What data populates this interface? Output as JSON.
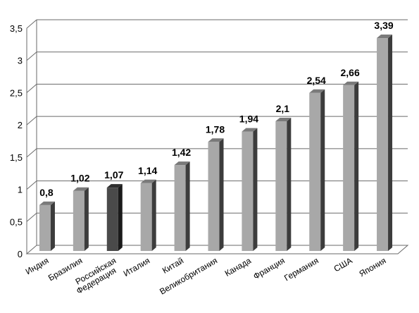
{
  "chart_data": {
    "type": "bar",
    "title": "",
    "xlabel": "",
    "ylabel": "",
    "ylim": [
      0,
      3.5
    ],
    "yticks": [
      "0",
      "0,5",
      "1",
      "1,5",
      "2",
      "2,5",
      "3",
      "3,5"
    ],
    "grid": true,
    "style": "3d-column",
    "categories": [
      "Индия",
      "Бразилия",
      "Российская Федерация",
      "Италия",
      "Китай",
      "Великобритания",
      "Канада",
      "Франция",
      "Германия",
      "США",
      "Япония"
    ],
    "category_lines": [
      [
        "Индия"
      ],
      [
        "Бразилия"
      ],
      [
        "Российская",
        "Федерация"
      ],
      [
        "Италия"
      ],
      [
        "Китай"
      ],
      [
        "Великобритания"
      ],
      [
        "Канада"
      ],
      [
        "Франция"
      ],
      [
        "Германия"
      ],
      [
        "США"
      ],
      [
        "Япония"
      ]
    ],
    "values": [
      0.8,
      1.02,
      1.07,
      1.14,
      1.42,
      1.78,
      1.94,
      2.1,
      2.54,
      2.66,
      3.39
    ],
    "data_labels": [
      "0,8",
      "1,02",
      "1,07",
      "1,14",
      "1,42",
      "1,78",
      "1,94",
      "2,1",
      "2,54",
      "2,66",
      "3,39"
    ],
    "highlight_index": 2,
    "colors": {
      "bar_front": "#a8a8a8",
      "bar_side": "#3c3c3c",
      "bar_top": "#7a7a7a",
      "highlight_front": "#4a4a4a",
      "highlight_side": "#1a1a1a",
      "highlight_top": "#2e2e2e",
      "grid": "#6a6a6a",
      "floor": "#cfcfcf"
    }
  }
}
